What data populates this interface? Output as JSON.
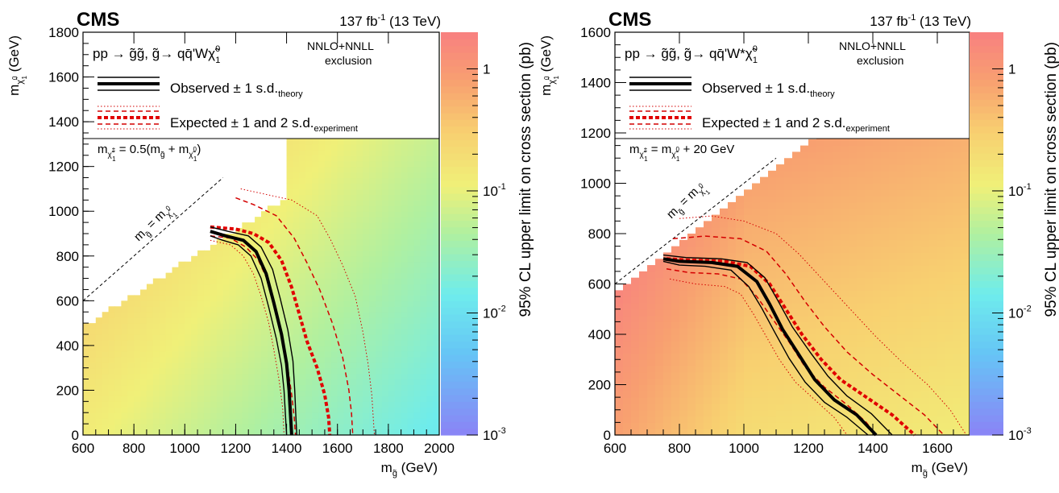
{
  "chart_data": [
    {
      "type": "heatmap",
      "experiment": "CMS",
      "luminosity_label": "137 fb",
      "lumi_sup": "-1",
      "energy_label": " (13 TeV)",
      "process": {
        "prefix": "pp → ",
        "sig1": "g̃g̃",
        "sep": ", ",
        "sig2": "g̃",
        "arrow": "→ ",
        "decay": "qq̄'W",
        "lsp": "χ̃",
        "lsp_sup": "0",
        "lsp_sub": "1"
      },
      "xsec_label": [
        "NNLO+NNLL",
        "exclusion"
      ],
      "legend": {
        "observed": {
          "text": "Observed ± 1 s.d.",
          "sub": "theory"
        },
        "expected": {
          "text": "Expected ± 1 and 2 s.d.",
          "sub": "experiment"
        }
      },
      "mass_relation": {
        "lhs": "m",
        "lhs_sub": "χ̃",
        "lhs_sub_sup": "±",
        "lhs_sub_sub": "1",
        "rhs": " = 0.5(m",
        "g_sub": "g̃",
        "plus": " + m",
        "chi_sub": "χ̃",
        "chi_sub_sup": "0",
        "chi_sub_sub": "1",
        "close": ")"
      },
      "diagonal_label": {
        "m1": "m",
        "g_sub": "g̃",
        "eq": " = m",
        "chi_sub": "χ̃",
        "chi_sup": "0",
        "chi_subsub": "1"
      },
      "xlabel": {
        "main": "m",
        "sub": "g̃",
        "unit": " (GeV)"
      },
      "ylabel": {
        "main": "m",
        "sub": "χ̃",
        "sub_sup": "0",
        "sub_sub": "1",
        "unit": " (GeV)"
      },
      "x_ticks": [
        "600",
        "800",
        "1000",
        "1200",
        "1400",
        "1600",
        "1800",
        "2000"
      ],
      "y_ticks": [
        "0",
        "200",
        "400",
        "600",
        "800",
        "1000",
        "1200",
        "1400",
        "1600",
        "1800"
      ],
      "xlim": [
        600,
        2000
      ],
      "ylim": [
        0,
        1800
      ],
      "z_title": "95% CL upper limit on cross section (pb)",
      "z_ticks": [
        {
          "base": "10",
          "exp": "-3",
          "v": -3
        },
        {
          "base": "10",
          "exp": "-2",
          "v": -2
        },
        {
          "base": "10",
          "exp": "-1",
          "v": -1
        },
        {
          "base": "1",
          "exp": "",
          "v": 0
        }
      ],
      "zlim_log10": [
        -3,
        0.3
      ],
      "observed": [
        [
          1100,
          910
        ],
        [
          1160,
          890
        ],
        [
          1230,
          870
        ],
        [
          1280,
          820
        ],
        [
          1320,
          720
        ],
        [
          1350,
          590
        ],
        [
          1380,
          450
        ],
        [
          1400,
          320
        ],
        [
          1410,
          200
        ],
        [
          1415,
          100
        ],
        [
          1420,
          0
        ]
      ],
      "observed_up": [
        [
          1100,
          930
        ],
        [
          1170,
          910
        ],
        [
          1250,
          890
        ],
        [
          1300,
          840
        ],
        [
          1345,
          740
        ],
        [
          1375,
          610
        ],
        [
          1405,
          470
        ],
        [
          1425,
          330
        ],
        [
          1432,
          200
        ],
        [
          1436,
          100
        ],
        [
          1440,
          0
        ]
      ],
      "observed_down": [
        [
          1100,
          890
        ],
        [
          1150,
          870
        ],
        [
          1210,
          850
        ],
        [
          1260,
          800
        ],
        [
          1300,
          700
        ],
        [
          1330,
          570
        ],
        [
          1360,
          430
        ],
        [
          1380,
          310
        ],
        [
          1390,
          200
        ],
        [
          1395,
          100
        ],
        [
          1400,
          0
        ]
      ],
      "expected": [
        [
          1100,
          930
        ],
        [
          1200,
          920
        ],
        [
          1270,
          900
        ],
        [
          1330,
          860
        ],
        [
          1380,
          780
        ],
        [
          1420,
          660
        ],
        [
          1450,
          540
        ],
        [
          1480,
          420
        ],
        [
          1520,
          300
        ],
        [
          1550,
          180
        ],
        [
          1565,
          80
        ],
        [
          1570,
          0
        ]
      ],
      "expected_1sd_up": [
        [
          1200,
          1060
        ],
        [
          1270,
          1030
        ],
        [
          1360,
          980
        ],
        [
          1430,
          880
        ],
        [
          1480,
          770
        ],
        [
          1530,
          650
        ],
        [
          1580,
          500
        ],
        [
          1620,
          350
        ],
        [
          1645,
          200
        ],
        [
          1655,
          100
        ],
        [
          1660,
          0
        ]
      ],
      "expected_1sd_down": [
        [
          1100,
          890
        ],
        [
          1180,
          880
        ],
        [
          1240,
          840
        ],
        [
          1290,
          780
        ],
        [
          1330,
          680
        ],
        [
          1360,
          560
        ],
        [
          1385,
          430
        ],
        [
          1405,
          300
        ],
        [
          1420,
          180
        ],
        [
          1430,
          80
        ],
        [
          1435,
          0
        ]
      ],
      "expected_2sd_up": [
        [
          1220,
          1100
        ],
        [
          1300,
          1080
        ],
        [
          1420,
          1050
        ],
        [
          1520,
          980
        ],
        [
          1570,
          880
        ],
        [
          1620,
          760
        ],
        [
          1670,
          620
        ],
        [
          1700,
          460
        ],
        [
          1720,
          320
        ],
        [
          1735,
          180
        ],
        [
          1745,
          0
        ]
      ],
      "expected_2sd_down": [
        [
          1100,
          870
        ],
        [
          1180,
          850
        ],
        [
          1230,
          800
        ],
        [
          1270,
          720
        ],
        [
          1300,
          620
        ],
        [
          1330,
          500
        ],
        [
          1350,
          380
        ],
        [
          1370,
          250
        ],
        [
          1385,
          120
        ],
        [
          1390,
          0
        ]
      ]
    },
    {
      "type": "heatmap",
      "experiment": "CMS",
      "luminosity_label": "137 fb",
      "lumi_sup": "-1",
      "energy_label": " (13 TeV)",
      "process": {
        "prefix": "pp → ",
        "sig1": "g̃g̃",
        "sep": ", ",
        "sig2": "g̃",
        "arrow": "→ ",
        "decay": "qq̄'W*",
        "lsp": "χ̃",
        "lsp_sup": "0",
        "lsp_sub": "1"
      },
      "xsec_label": [
        "NNLO+NNLL",
        "exclusion"
      ],
      "legend": {
        "observed": {
          "text": "Observed ± 1 s.d.",
          "sub": "theory"
        },
        "expected": {
          "text": "Expected ± 1 and 2 s.d.",
          "sub": "experiment"
        }
      },
      "mass_relation": {
        "lhs": "m",
        "lhs_sub": "χ̃",
        "lhs_sub_sup": "±",
        "lhs_sub_sub": "1",
        "rhs": " = m",
        "chi_sub": "χ̃",
        "chi_sub_sup": "0",
        "chi_sub_sub": "1",
        "tail": " + 20 GeV"
      },
      "diagonal_label": {
        "m1": "m",
        "g_sub": "g̃",
        "eq": " = m",
        "chi_sub": "χ̃",
        "chi_sup": "0",
        "chi_subsub": "1"
      },
      "xlabel": {
        "main": "m",
        "sub": "g̃",
        "unit": " (GeV)"
      },
      "ylabel": {
        "main": "m",
        "sub": "χ̃",
        "sub_sup": "0",
        "sub_sub": "1",
        "unit": " (GeV)"
      },
      "x_ticks": [
        "600",
        "800",
        "1000",
        "1200",
        "1400",
        "1600"
      ],
      "y_ticks": [
        "0",
        "200",
        "400",
        "600",
        "800",
        "1000",
        "1200",
        "1400",
        "1600"
      ],
      "xlim": [
        600,
        1700
      ],
      "ylim": [
        0,
        1600
      ],
      "z_title": "95% CL upper limit on cross section (pb)",
      "z_ticks": [
        {
          "base": "10",
          "exp": "-3",
          "v": -3
        },
        {
          "base": "10",
          "exp": "-2",
          "v": -2
        },
        {
          "base": "10",
          "exp": "-1",
          "v": -1
        },
        {
          "base": "1",
          "exp": "",
          "v": 0
        }
      ],
      "zlim_log10": [
        -3,
        0.3
      ],
      "observed": [
        [
          750,
          700
        ],
        [
          800,
          690
        ],
        [
          900,
          685
        ],
        [
          980,
          670
        ],
        [
          1040,
          610
        ],
        [
          1080,
          520
        ],
        [
          1120,
          420
        ],
        [
          1170,
          320
        ],
        [
          1220,
          220
        ],
        [
          1280,
          140
        ],
        [
          1350,
          80
        ],
        [
          1410,
          0
        ]
      ],
      "observed_up": [
        [
          750,
          715
        ],
        [
          820,
          705
        ],
        [
          930,
          700
        ],
        [
          1010,
          685
        ],
        [
          1065,
          625
        ],
        [
          1105,
          535
        ],
        [
          1150,
          430
        ],
        [
          1205,
          330
        ],
        [
          1260,
          235
        ],
        [
          1320,
          155
        ],
        [
          1395,
          85
        ],
        [
          1460,
          0
        ]
      ],
      "observed_down": [
        [
          750,
          690
        ],
        [
          800,
          675
        ],
        [
          880,
          670
        ],
        [
          960,
          655
        ],
        [
          1015,
          590
        ],
        [
          1055,
          505
        ],
        [
          1095,
          410
        ],
        [
          1140,
          305
        ],
        [
          1190,
          210
        ],
        [
          1250,
          130
        ],
        [
          1320,
          70
        ],
        [
          1385,
          0
        ]
      ],
      "expected": [
        [
          760,
          700
        ],
        [
          820,
          695
        ],
        [
          940,
          690
        ],
        [
          1020,
          670
        ],
        [
          1080,
          600
        ],
        [
          1130,
          500
        ],
        [
          1180,
          400
        ],
        [
          1240,
          300
        ],
        [
          1300,
          220
        ],
        [
          1380,
          150
        ],
        [
          1460,
          80
        ],
        [
          1530,
          0
        ]
      ],
      "expected_1sd_up": [
        [
          780,
          780
        ],
        [
          880,
          790
        ],
        [
          990,
          780
        ],
        [
          1070,
          730
        ],
        [
          1130,
          640
        ],
        [
          1190,
          530
        ],
        [
          1250,
          430
        ],
        [
          1320,
          330
        ],
        [
          1400,
          240
        ],
        [
          1480,
          160
        ],
        [
          1560,
          80
        ],
        [
          1620,
          0
        ]
      ],
      "expected_1sd_down": [
        [
          760,
          660
        ],
        [
          830,
          645
        ],
        [
          920,
          640
        ],
        [
          990,
          620
        ],
        [
          1040,
          550
        ],
        [
          1090,
          460
        ],
        [
          1140,
          370
        ],
        [
          1190,
          270
        ],
        [
          1250,
          190
        ],
        [
          1320,
          120
        ],
        [
          1380,
          50
        ],
        [
          1410,
          0
        ]
      ],
      "expected_2sd_up": [
        [
          800,
          860
        ],
        [
          900,
          870
        ],
        [
          1000,
          850
        ],
        [
          1100,
          800
        ],
        [
          1170,
          720
        ],
        [
          1250,
          610
        ],
        [
          1330,
          500
        ],
        [
          1410,
          390
        ],
        [
          1490,
          290
        ],
        [
          1570,
          200
        ],
        [
          1640,
          100
        ],
        [
          1690,
          0
        ]
      ],
      "expected_2sd_down": [
        [
          770,
          620
        ],
        [
          850,
          600
        ],
        [
          940,
          590
        ],
        [
          990,
          560
        ],
        [
          1030,
          480
        ],
        [
          1070,
          390
        ],
        [
          1110,
          300
        ],
        [
          1160,
          210
        ],
        [
          1220,
          140
        ],
        [
          1280,
          70
        ],
        [
          1320,
          0
        ]
      ]
    }
  ]
}
